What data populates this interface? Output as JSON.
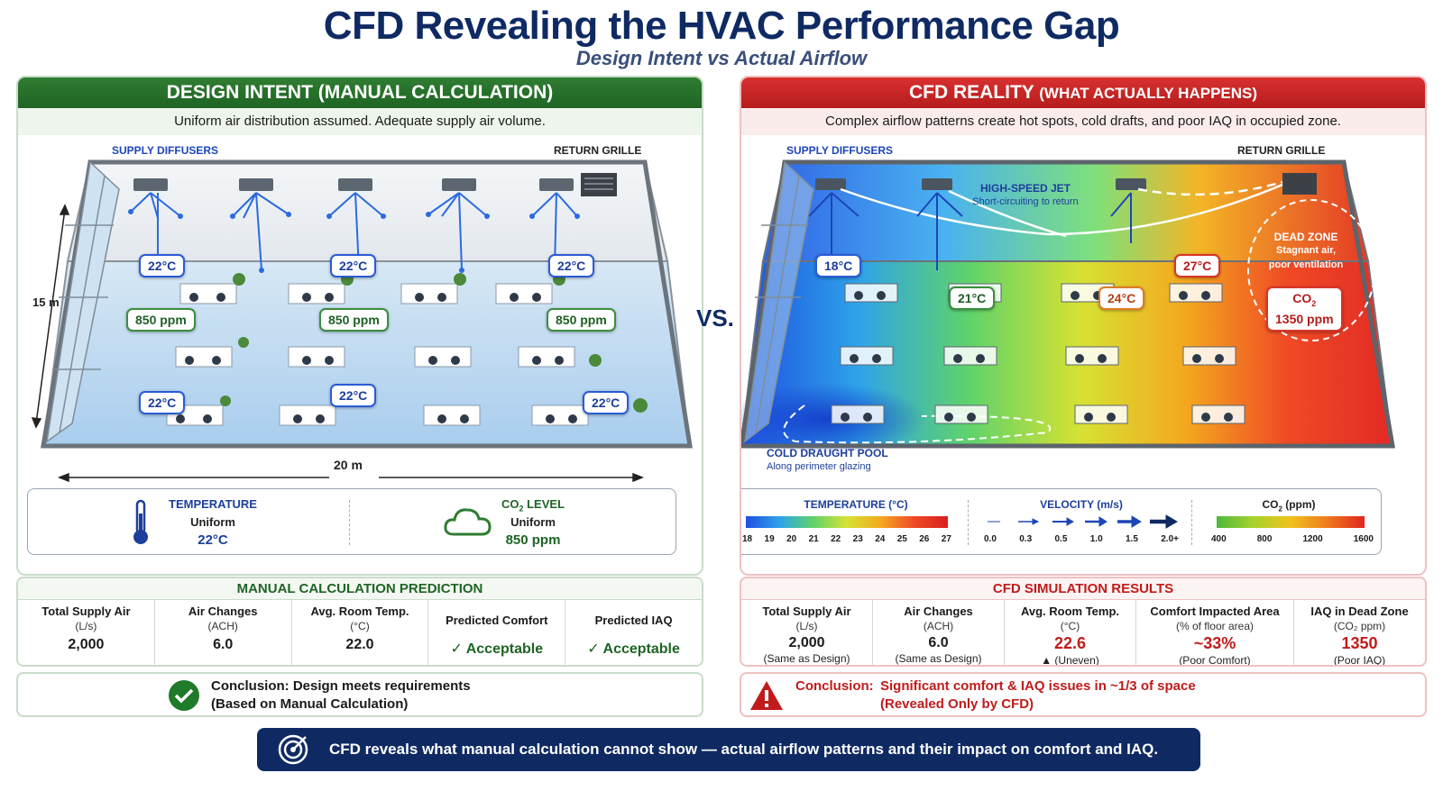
{
  "header": {
    "title": "CFD Revealing the HVAC Performance Gap",
    "subtitle": "Design Intent vs Actual Airflow"
  },
  "left": {
    "heading": "DESIGN INTENT (MANUAL CALCULATION)",
    "subheading": "Uniform air distribution assumed. Adequate supply air volume.",
    "supply_label": "SUPPLY DIFFUSERS",
    "return_label": "RETURN GRILLE",
    "dim_height": "15 m",
    "dim_width": "20 m",
    "temps": [
      "22°C",
      "22°C",
      "22°C",
      "22°C",
      "22°C",
      "22°C"
    ],
    "co2": [
      "850 ppm",
      "850 ppm",
      "850 ppm"
    ],
    "temperature": {
      "label": "TEMPERATURE",
      "state": "Uniform",
      "value": "22°C"
    },
    "co2_level": {
      "label_pre": "CO",
      "label_sub": "2",
      "label_post": " LEVEL",
      "state": "Uniform",
      "value": "850 ppm"
    },
    "table": {
      "title": "MANUAL CALCULATION PREDICTION",
      "columns": [
        {
          "head": "Total Supply Air",
          "unit": "(L/s)",
          "value": "2,000"
        },
        {
          "head": "Air Changes",
          "unit": "(ACH)",
          "value": "6.0"
        },
        {
          "head": "Avg. Room Temp.",
          "unit": "(°C)",
          "value": "22.0"
        },
        {
          "head": "Predicted Comfort",
          "value": "✓ Acceptable"
        },
        {
          "head": "Predicted IAQ",
          "value": "✓ Acceptable"
        }
      ]
    },
    "conclusion": {
      "line1": "Conclusion: Design meets requirements",
      "line2": "(Based on Manual Calculation)"
    }
  },
  "vs": "VS.",
  "right": {
    "heading": "CFD REALITY",
    "heading_small": "(WHAT ACTUALLY HAPPENS)",
    "subheading": "Complex airflow patterns create hot spots, cold drafts, and poor IAQ in occupied zone.",
    "supply_label": "SUPPLY DIFFUSERS",
    "return_label": "RETURN GRILLE",
    "jet": {
      "title": "HIGH-SPEED JET",
      "note": "Short-circuiting to return"
    },
    "dead_zone": {
      "title": "DEAD ZONE",
      "line1": "Stagnant air,",
      "line2": "poor ventilation"
    },
    "temps": {
      "t18": "18°C",
      "t21": "21°C",
      "t24": "24°C",
      "t27": "27°C"
    },
    "co2_callout": {
      "label_pre": "CO",
      "label_sub": "2",
      "value": "1350 ppm"
    },
    "cold_pool": {
      "title": "COLD DRAUGHT POOL",
      "note": "Along perimeter glazing"
    },
    "legend": {
      "temperature": {
        "title": "TEMPERATURE (°C)",
        "ticks": [
          "18",
          "19",
          "20",
          "21",
          "22",
          "23",
          "24",
          "25",
          "26",
          "27"
        ]
      },
      "velocity": {
        "title": "VELOCITY (m/s)",
        "ticks": [
          "0.0",
          "0.3",
          "0.5",
          "1.0",
          "1.5",
          "2.0+"
        ]
      },
      "co2": {
        "title_pre": "CO",
        "title_sub": "2",
        "title_post": " (ppm)",
        "ticks": [
          "400",
          "800",
          "1200",
          "1600"
        ]
      }
    },
    "table": {
      "title": "CFD SIMULATION RESULTS",
      "columns": [
        {
          "head": "Total Supply Air",
          "unit": "(L/s)",
          "value": "2,000",
          "note": "(Same as Design)"
        },
        {
          "head": "Air Changes",
          "unit": "(ACH)",
          "value": "6.0",
          "note": "(Same as Design)"
        },
        {
          "head": "Avg. Room Temp.",
          "unit": "(°C)",
          "value": "22.6",
          "note": "▲ (Uneven)"
        },
        {
          "head": "Comfort Impacted Area",
          "unit": "(% of floor area)",
          "value": "~33%",
          "note": "(Poor Comfort)"
        },
        {
          "head": "IAQ in Dead Zone",
          "unit": "(CO₂ ppm)",
          "value": "1350",
          "note": "(Poor IAQ)"
        }
      ]
    },
    "conclusion": {
      "label": "Conclusion:",
      "line1": "Significant comfort & IAQ issues in ~1/3 of space",
      "line2": "(Revealed Only by CFD)"
    }
  },
  "banner": "CFD reveals what manual calculation cannot show — actual airflow patterns and their impact on comfort and IAQ.",
  "colors": {
    "navy": "#0f2a63",
    "green": "#1f6424",
    "red": "#c01b1b"
  }
}
